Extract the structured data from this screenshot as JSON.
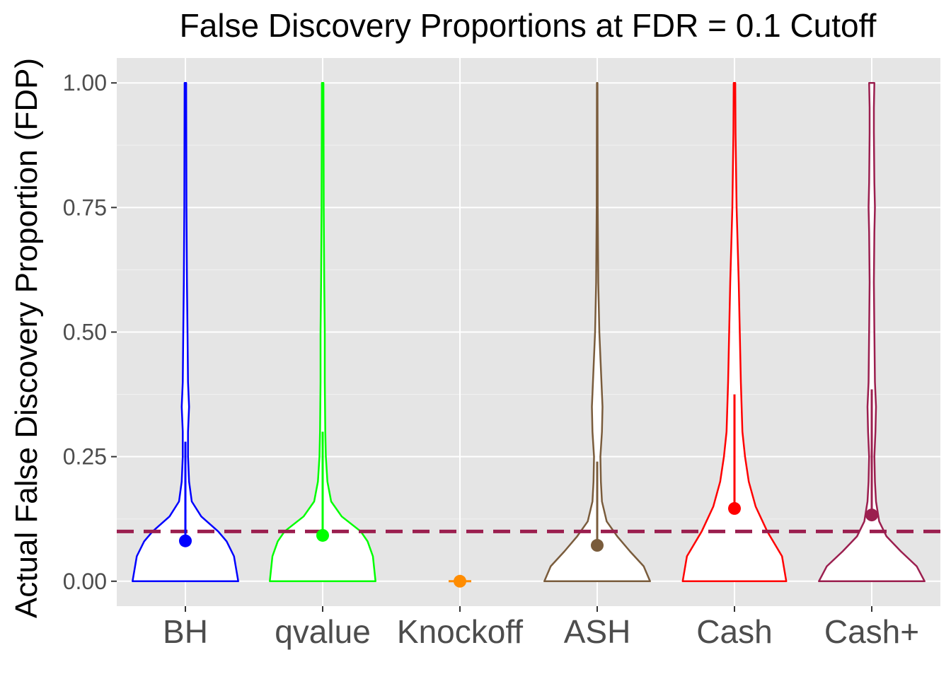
{
  "chart_data": {
    "type": "violin",
    "title": "False Discovery Proportions at FDR = 0.1 Cutoff",
    "xlabel": "",
    "ylabel": "Actual False Discovery Proportion (FDP)",
    "ylim": [
      -0.05,
      1.05
    ],
    "yticks": [
      0.0,
      0.25,
      0.5,
      0.75,
      1.0
    ],
    "ytick_labels": [
      "0.00",
      "0.25",
      "0.50",
      "0.75",
      "1.00"
    ],
    "categories": [
      "BH",
      "qvalue",
      "Knockoff",
      "ASH",
      "Cash",
      "Cash+"
    ],
    "reference_line": {
      "y": 0.1,
      "style": "dashed",
      "color": "#9b1f4f"
    },
    "grid": true,
    "background": "#e5e5e5",
    "series": [
      {
        "name": "BH",
        "color": "#0000ff",
        "mean": 0.081,
        "line_top": 0.28,
        "violin_halfwidth_frac": [
          [
            0.0,
            1.0
          ],
          [
            0.05,
            0.92
          ],
          [
            0.08,
            0.78
          ],
          [
            0.1,
            0.62
          ],
          [
            0.13,
            0.3
          ],
          [
            0.16,
            0.12
          ],
          [
            0.2,
            0.07
          ],
          [
            0.25,
            0.05
          ],
          [
            0.3,
            0.05
          ],
          [
            0.35,
            0.07
          ],
          [
            0.4,
            0.05
          ],
          [
            0.5,
            0.04
          ],
          [
            0.6,
            0.03
          ],
          [
            0.75,
            0.02
          ],
          [
            1.0,
            0.015
          ]
        ]
      },
      {
        "name": "qvalue",
        "color": "#00ff00",
        "mean": 0.092,
        "line_top": 0.3,
        "violin_halfwidth_frac": [
          [
            0.0,
            1.0
          ],
          [
            0.05,
            0.95
          ],
          [
            0.08,
            0.85
          ],
          [
            0.1,
            0.72
          ],
          [
            0.13,
            0.36
          ],
          [
            0.16,
            0.16
          ],
          [
            0.2,
            0.09
          ],
          [
            0.25,
            0.06
          ],
          [
            0.3,
            0.05
          ],
          [
            0.4,
            0.04
          ],
          [
            0.5,
            0.04
          ],
          [
            0.6,
            0.03
          ],
          [
            0.75,
            0.02
          ],
          [
            1.0,
            0.015
          ]
        ]
      },
      {
        "name": "Knockoff",
        "color": "#ff8c00",
        "mean": 0.0,
        "line_top": 0.0,
        "violin_halfwidth_frac": [
          [
            0.0,
            0.1
          ]
        ]
      },
      {
        "name": "ASH",
        "color": "#7a5c3c",
        "mean": 0.072,
        "line_top": 0.24,
        "violin_halfwidth_frac": [
          [
            0.0,
            1.0
          ],
          [
            0.03,
            0.88
          ],
          [
            0.06,
            0.62
          ],
          [
            0.09,
            0.38
          ],
          [
            0.12,
            0.18
          ],
          [
            0.16,
            0.09
          ],
          [
            0.2,
            0.07
          ],
          [
            0.25,
            0.06
          ],
          [
            0.3,
            0.09
          ],
          [
            0.35,
            0.1
          ],
          [
            0.4,
            0.08
          ],
          [
            0.5,
            0.04
          ],
          [
            0.6,
            0.02
          ],
          [
            0.75,
            0.01
          ],
          [
            1.0,
            0.005
          ]
        ]
      },
      {
        "name": "Cash",
        "color": "#ff0000",
        "mean": 0.146,
        "line_top": 0.375,
        "violin_halfwidth_frac": [
          [
            0.0,
            0.98
          ],
          [
            0.05,
            0.9
          ],
          [
            0.1,
            0.62
          ],
          [
            0.15,
            0.4
          ],
          [
            0.2,
            0.27
          ],
          [
            0.25,
            0.2
          ],
          [
            0.3,
            0.15
          ],
          [
            0.4,
            0.12
          ],
          [
            0.5,
            0.1
          ],
          [
            0.6,
            0.08
          ],
          [
            0.75,
            0.04
          ],
          [
            0.9,
            0.02
          ],
          [
            1.0,
            0.015
          ]
        ]
      },
      {
        "name": "Cash+",
        "color": "#9b1f4f",
        "mean": 0.133,
        "line_top": 0.385,
        "violin_halfwidth_frac": [
          [
            0.0,
            1.0
          ],
          [
            0.03,
            0.85
          ],
          [
            0.06,
            0.55
          ],
          [
            0.09,
            0.28
          ],
          [
            0.12,
            0.14
          ],
          [
            0.16,
            0.08
          ],
          [
            0.2,
            0.06
          ],
          [
            0.25,
            0.05
          ],
          [
            0.3,
            0.07
          ],
          [
            0.35,
            0.08
          ],
          [
            0.4,
            0.06
          ],
          [
            0.5,
            0.05
          ],
          [
            0.6,
            0.04
          ],
          [
            0.7,
            0.05
          ],
          [
            0.75,
            0.06
          ],
          [
            0.8,
            0.05
          ],
          [
            0.9,
            0.04
          ],
          [
            0.95,
            0.04
          ],
          [
            1.0,
            0.05
          ]
        ]
      }
    ]
  }
}
